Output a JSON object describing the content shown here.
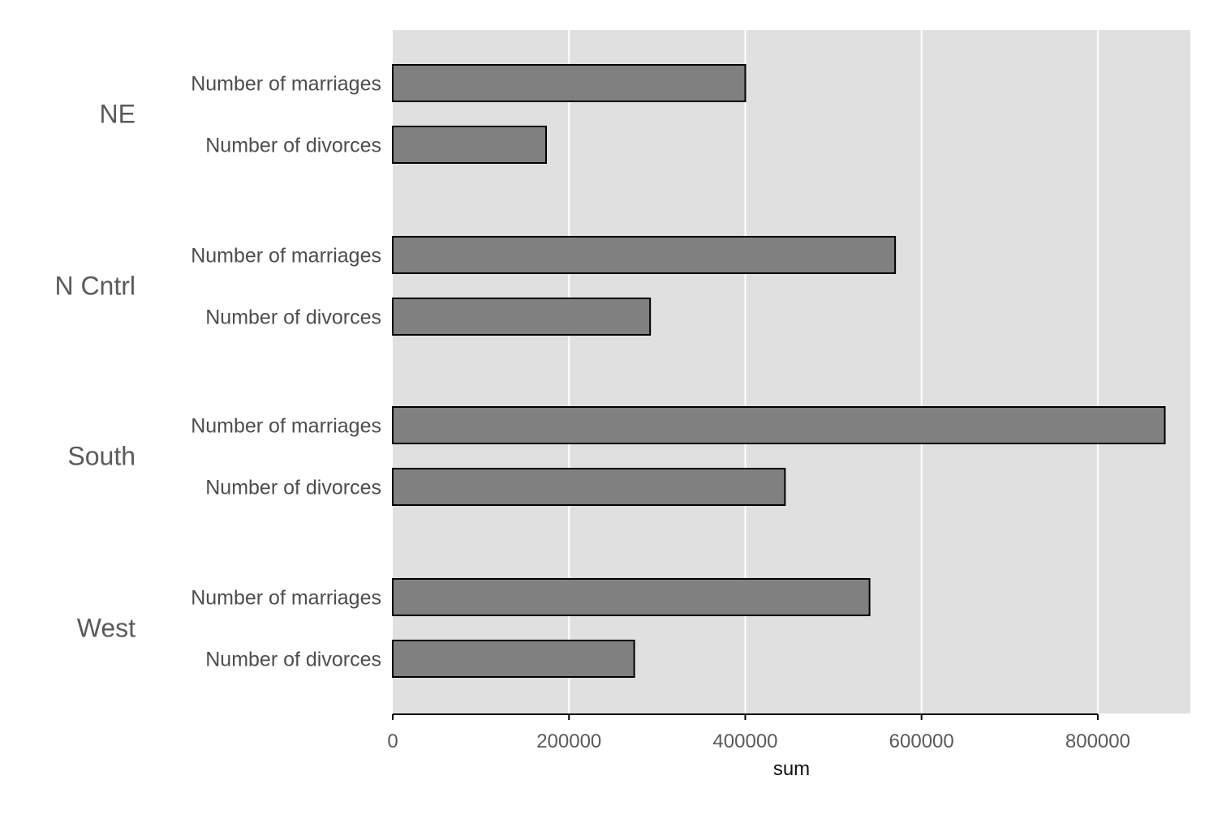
{
  "chart_data": {
    "type": "bar",
    "orientation": "horizontal",
    "groups": [
      {
        "name": "NE",
        "bars": [
          {
            "label": "Number of marriages",
            "value": 400000
          },
          {
            "label": "Number of divorces",
            "value": 174000
          }
        ]
      },
      {
        "name": "N Cntrl",
        "bars": [
          {
            "label": "Number of marriages",
            "value": 570000
          },
          {
            "label": "Number of divorces",
            "value": 292000
          }
        ]
      },
      {
        "name": "South",
        "bars": [
          {
            "label": "Number of marriages",
            "value": 876000
          },
          {
            "label": "Number of divorces",
            "value": 445000
          }
        ]
      },
      {
        "name": "West",
        "bars": [
          {
            "label": "Number of marriages",
            "value": 541000
          },
          {
            "label": "Number of divorces",
            "value": 274000
          }
        ]
      }
    ],
    "xlabel": "sum",
    "xlim": [
      0,
      905000
    ],
    "xticks": [
      0,
      200000,
      400000,
      600000,
      800000
    ],
    "xtick_labels": [
      "0",
      "200000",
      "400000",
      "600000",
      "800000"
    ],
    "grid": "vertical",
    "legend": "none",
    "colors": {
      "panel_bg": "#e0e0e0",
      "grid": "#ffffff",
      "bar_fill": "#808080",
      "bar_stroke": "#000000",
      "axis": "#000000"
    }
  }
}
